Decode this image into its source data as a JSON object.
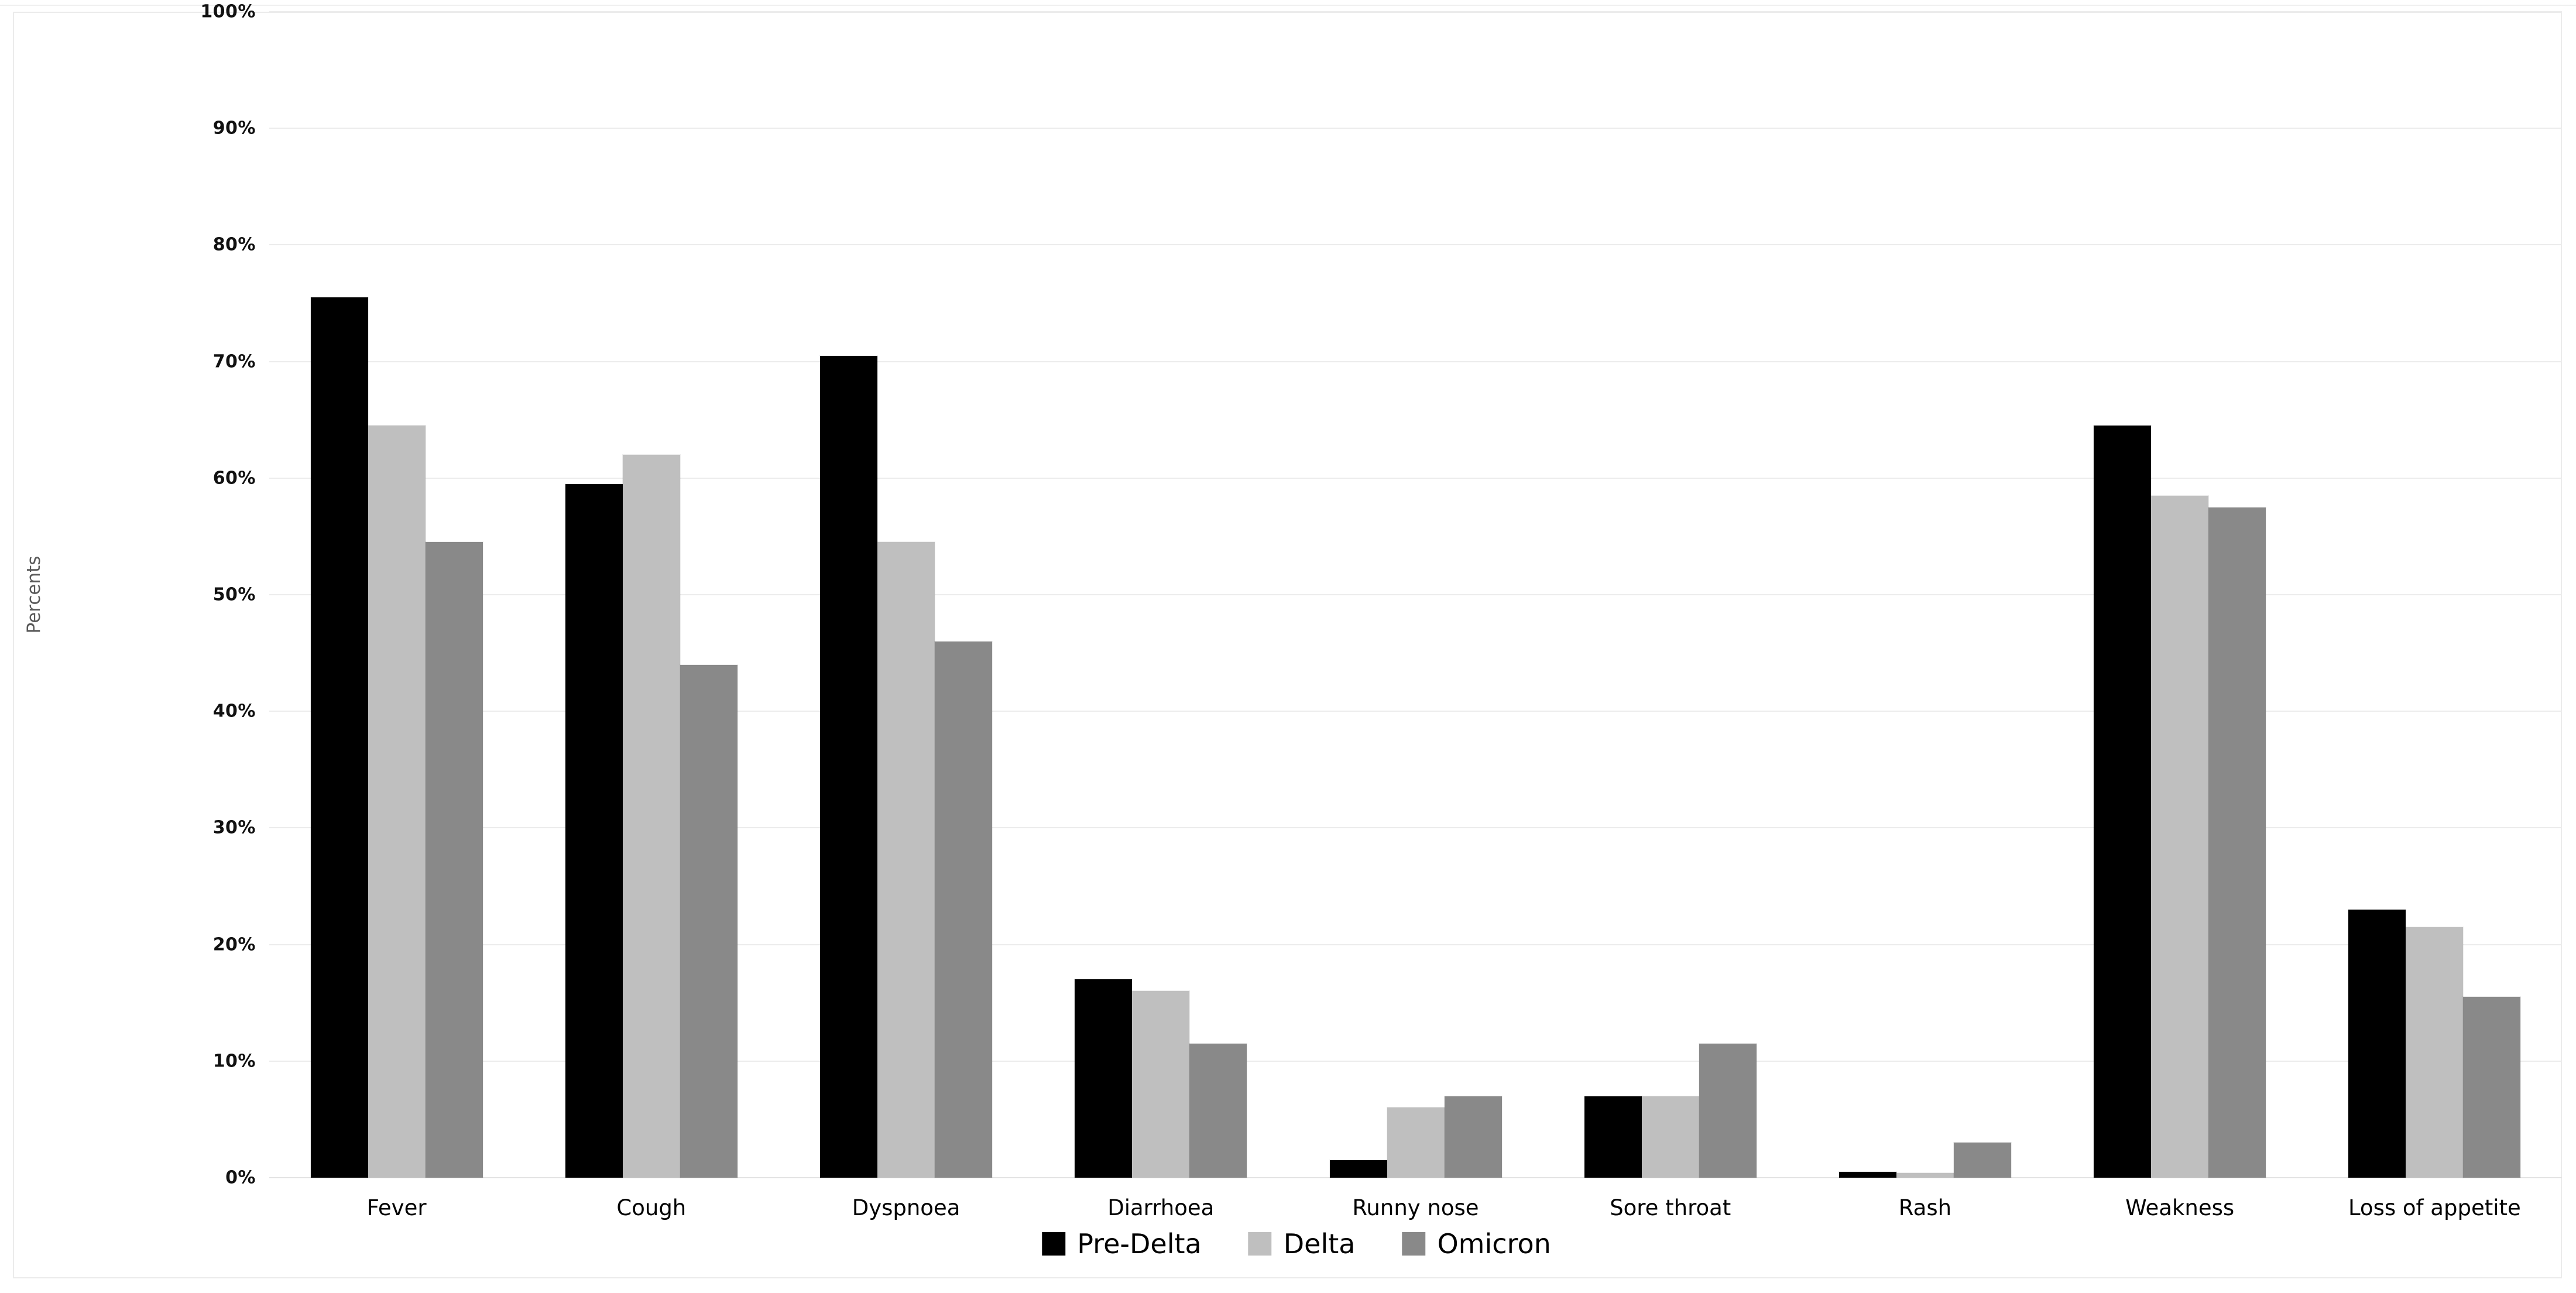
{
  "chart_data": {
    "type": "bar",
    "title": "",
    "categories": [
      "Fever",
      "Cough",
      "Dyspnoea",
      "Diarrhoea",
      "Runny nose",
      "Sore throat",
      "Rash",
      "Weakness",
      "Loss of appetite"
    ],
    "series": [
      {
        "name": "Pre-Delta",
        "color": "#000000",
        "values": [
          75.5,
          59.5,
          70.5,
          17,
          1.5,
          7,
          0.5,
          64.5,
          23
        ]
      },
      {
        "name": "Delta",
        "color": "#bfbfbf",
        "values": [
          64.5,
          62,
          54.5,
          16,
          6,
          7,
          0.4,
          58.5,
          21.5
        ]
      },
      {
        "name": "Omicron",
        "color": "#898989",
        "values": [
          54.5,
          44,
          46,
          11.5,
          7,
          11.5,
          3,
          57.5,
          15.5
        ]
      }
    ],
    "ylabel": "Percents",
    "xlabel": "",
    "ylim": [
      0,
      100
    ],
    "ytick_step": 10,
    "ytick_labels": [
      "0%",
      "10%",
      "20%",
      "30%",
      "40%",
      "50%",
      "60%",
      "70%",
      "80%",
      "90%",
      "100%"
    ],
    "grid": true,
    "legend_position": "bottom-center"
  },
  "colors": {
    "gridline": "#ececec",
    "baseline": "#e3e3e3",
    "card_border": "#ebebeb",
    "axis_text": "#111111",
    "ylabel_text": "#595959",
    "background": "#ffffff"
  }
}
